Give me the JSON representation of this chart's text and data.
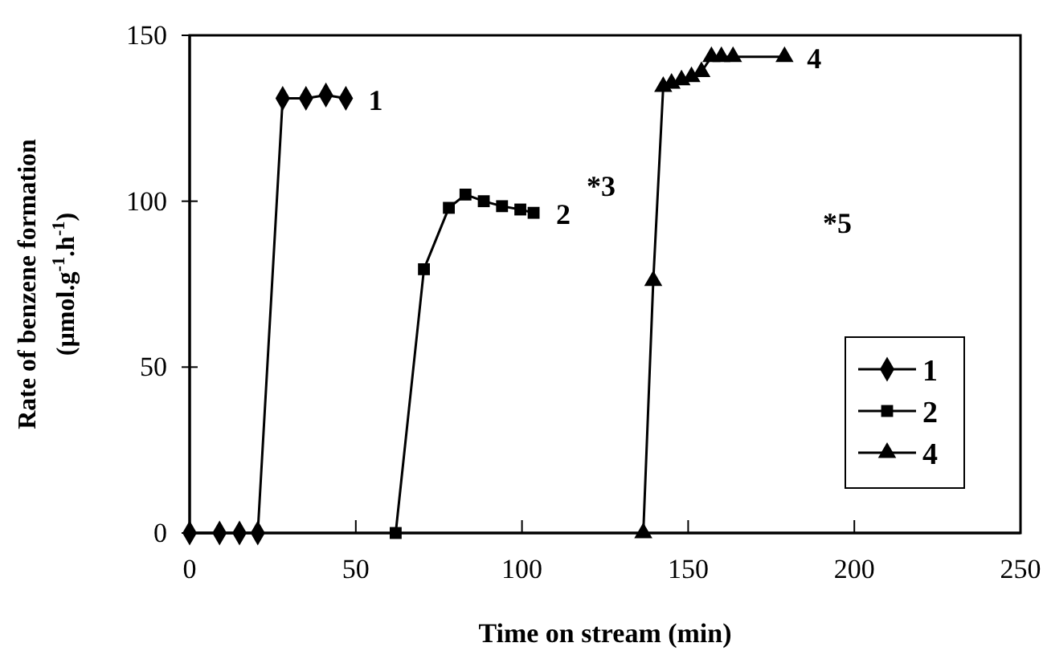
{
  "chart_data": {
    "type": "line",
    "xlabel": "Time on stream (min)",
    "ylabel": "Rate of benzene formation (µmol.g$^{-1}$.h$^{-1}$)",
    "xlim": [
      0,
      250
    ],
    "xticks": [
      0,
      50,
      100,
      150,
      200,
      250
    ],
    "ylim": [
      0,
      150
    ],
    "yticks": [
      0,
      50,
      100,
      150
    ],
    "grid": false,
    "legend": "bottom right",
    "series": [
      {
        "name": "1",
        "color": "#000000",
        "marker": "diamond",
        "x": [
          0,
          9,
          15,
          20.5,
          28,
          35,
          41,
          47
        ],
        "values": [
          0,
          0,
          0,
          0,
          131,
          131,
          132,
          131
        ]
      },
      {
        "name": "2",
        "color": "#000000",
        "marker": "square",
        "x": [
          62,
          70.5,
          78,
          83,
          88.5,
          94,
          99.5,
          103.5
        ],
        "values": [
          0,
          79.5,
          98,
          102,
          100,
          98.5,
          97.5,
          96.5
        ]
      },
      {
        "name": "4",
        "color": "#000000",
        "marker": "triangle",
        "x": [
          136.5,
          139.5,
          142.5,
          145,
          148,
          151,
          154,
          157,
          160,
          163.5,
          179
        ],
        "values": [
          0,
          76,
          134.5,
          135.5,
          136.5,
          137.5,
          139,
          143.5,
          143.5,
          143.5,
          143.5
        ]
      }
    ],
    "annotations": [
      "*3",
      "*5"
    ]
  }
}
